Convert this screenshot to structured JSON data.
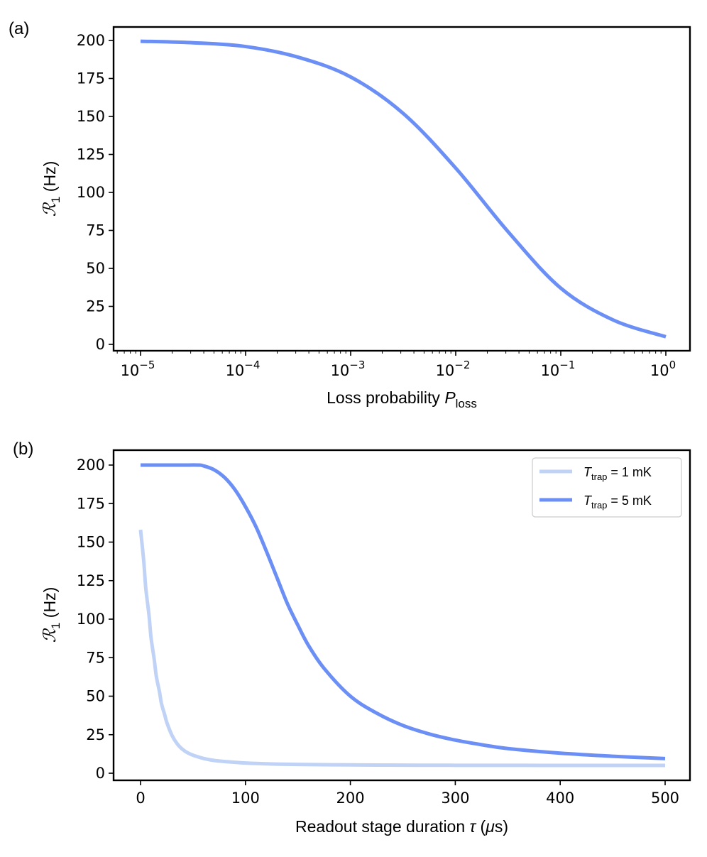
{
  "chart_data": [
    {
      "type": "line",
      "panel_label": "(a)",
      "xscale": "log",
      "xlim_exponent": [
        -5,
        0
      ],
      "x_tick_exponents": [
        -5,
        -4,
        -3,
        -2,
        -1,
        0
      ],
      "x_tick_base": "10",
      "x_tick_labels": [
        "10^-5",
        "10^-4",
        "10^-3",
        "10^-2",
        "10^-1",
        "10^0"
      ],
      "ylim": [
        0,
        200
      ],
      "y_ticks": [
        0,
        25,
        50,
        75,
        100,
        125,
        150,
        175,
        200
      ],
      "xlabel": "Loss probability",
      "xlabel_var": "P",
      "xlabel_sub": "loss",
      "ylabel_var": "ℛ",
      "ylabel_sub": "1",
      "ylabel_unit": "(Hz)",
      "series": [
        {
          "name": "R1 vs P_loss",
          "color": "#6b8ff5",
          "x_log10": [
            -5,
            -4.5,
            -4,
            -3.5,
            -3,
            -2.5,
            -2,
            -1.5,
            -1,
            -0.5,
            0
          ],
          "values": [
            199.5,
            198.5,
            196,
            189,
            176,
            152,
            116,
            74,
            37,
            16,
            5
          ]
        }
      ]
    },
    {
      "type": "line",
      "panel_label": "(b)",
      "xlim": [
        -25,
        525
      ],
      "x_ticks": [
        0,
        100,
        200,
        300,
        400,
        500
      ],
      "ylim": [
        0,
        200
      ],
      "y_ticks": [
        0,
        25,
        50,
        75,
        100,
        125,
        150,
        175,
        200
      ],
      "xlabel": "Readout stage duration",
      "xlabel_var": "τ",
      "xlabel_unit_open": "(",
      "xlabel_unit_mu": "μ",
      "xlabel_unit_rest": "s)",
      "ylabel_var": "ℛ",
      "ylabel_sub": "1",
      "ylabel_unit": "(Hz)",
      "legend_position": "top-right",
      "series": [
        {
          "name": "T_trap = 1 mK",
          "legend_var": "T",
          "legend_sub": "trap",
          "legend_eq": " = 1 mK",
          "color": "#c0d3f7",
          "x": [
            0,
            3,
            5,
            8,
            10,
            13,
            15,
            18,
            20,
            23,
            25,
            30,
            35,
            40,
            45,
            50,
            60,
            70,
            80,
            100,
            125,
            150,
            200,
            250,
            300,
            400,
            500
          ],
          "values": [
            158,
            138,
            120,
            103,
            88,
            74,
            63,
            53,
            45,
            38,
            33,
            24.5,
            19,
            15.5,
            13.2,
            11.7,
            9.6,
            8.3,
            7.6,
            6.6,
            6.0,
            5.7,
            5.4,
            5.25,
            5.15,
            5.08,
            5.05
          ]
        },
        {
          "name": "T_trap = 5 mK",
          "legend_var": "T",
          "legend_sub": "trap",
          "legend_eq": " = 5 mK",
          "color": "#6b8ff5",
          "x": [
            0,
            20,
            40,
            55,
            60,
            70,
            80,
            90,
            100,
            110,
            120,
            130,
            140,
            150,
            160,
            175,
            200,
            225,
            250,
            275,
            300,
            325,
            350,
            400,
            450,
            500
          ],
          "values": [
            200,
            200,
            200,
            200,
            199.5,
            197,
            192,
            184,
            173,
            160,
            144,
            127,
            110,
            96,
            83,
            68,
            50,
            39,
            31,
            25.5,
            21.5,
            18.5,
            16,
            13,
            11,
            9.5
          ]
        }
      ]
    }
  ]
}
